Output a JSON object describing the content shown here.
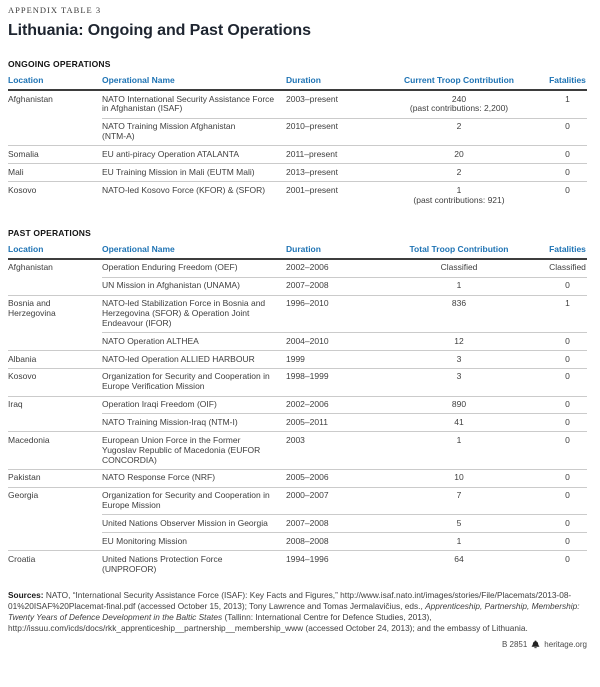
{
  "page": {
    "kicker": "APPENDIX TABLE 3",
    "title": "Lithuania: Ongoing and Past Operations"
  },
  "colors": {
    "header_blue": "#1e73b4",
    "title_dark": "#1e2530",
    "rule_dark": "#3d3d3d",
    "rule_light": "#cbcbcb"
  },
  "ongoing": {
    "section_label": "ONGOING OPERATIONS",
    "columns": [
      "Location",
      "Operational Name",
      "Duration",
      "Current Troop Contribution",
      "Fatalities"
    ],
    "rows": [
      {
        "location": "Afghanistan",
        "name": "NATO International Security Assistance Force\nin Afghanistan (ISAF)",
        "duration": "2003–present",
        "troops": "240",
        "troops_note": "(past contributions: 2,200)",
        "fatalities": "1"
      },
      {
        "location": "",
        "name": "NATO Training Mission Afghanistan\n(NTM-A)",
        "duration": "2010–present",
        "troops": "2",
        "troops_note": "",
        "fatalities": "0"
      },
      {
        "location": "Somalia",
        "name": "EU anti-piracy Operation ATALANTA",
        "duration": "2011–present",
        "troops": "20",
        "troops_note": "",
        "fatalities": "0"
      },
      {
        "location": "Mali",
        "name": "EU Training Mission in Mali (EUTM Mali)",
        "duration": "2013–present",
        "troops": "2",
        "troops_note": "",
        "fatalities": "0"
      },
      {
        "location": "Kosovo",
        "name": "NATO-led Kosovo Force (KFOR) & (SFOR)",
        "duration": "2001–present",
        "troops": "1",
        "troops_note": "(past contributions: 921)",
        "fatalities": "0"
      }
    ]
  },
  "past": {
    "section_label": "PAST OPERATIONS",
    "columns": [
      "Location",
      "Operational Name",
      "Duration",
      "Total Troop Contribution",
      "Fatalities"
    ],
    "rows": [
      {
        "location": "Afghanistan",
        "name": "Operation Enduring Freedom (OEF)",
        "duration": "2002–2006",
        "troops": "Classified",
        "troops_note": "",
        "fatalities": "Classified"
      },
      {
        "location": "",
        "name": "UN Mission in Afghanistan (UNAMA)",
        "duration": "2007–2008",
        "troops": "1",
        "troops_note": "",
        "fatalities": "0"
      },
      {
        "location": "Bosnia and\nHerzegovina",
        "name": "NATO-led Stabilization Force in Bosnia and\nHerzegovina (SFOR) & Operation Joint\nEndeavour (IFOR)",
        "duration": "1996–2010",
        "troops": "836",
        "troops_note": "",
        "fatalities": "1"
      },
      {
        "location": "",
        "name": "NATO Operation ALTHEA",
        "duration": "2004–2010",
        "troops": "12",
        "troops_note": "",
        "fatalities": "0"
      },
      {
        "location": "Albania",
        "name": "NATO-led Operation ALLIED HARBOUR",
        "duration": "1999",
        "troops": "3",
        "troops_note": "",
        "fatalities": "0"
      },
      {
        "location": "Kosovo",
        "name": "Organization for Security and Cooperation in\nEurope Verification Mission",
        "duration": "1998–1999",
        "troops": "3",
        "troops_note": "",
        "fatalities": "0"
      },
      {
        "location": "Iraq",
        "name": "Operation Iraqi Freedom (OIF)",
        "duration": "2002–2006",
        "troops": "890",
        "troops_note": "",
        "fatalities": "0"
      },
      {
        "location": "",
        "name": "NATO Training Mission-Iraq (NTM-I)",
        "duration": "2005–2011",
        "troops": "41",
        "troops_note": "",
        "fatalities": "0"
      },
      {
        "location": "Macedonia",
        "name": "European Union Force in the Former\nYugoslav Republic of Macedonia (EUFOR\nCONCORDIA)",
        "duration": "2003",
        "troops": "1",
        "troops_note": "",
        "fatalities": "0"
      },
      {
        "location": "Pakistan",
        "name": "NATO Response Force (NRF)",
        "duration": "2005–2006",
        "troops": "10",
        "troops_note": "",
        "fatalities": "0"
      },
      {
        "location": "Georgia",
        "name": "Organization for Security and Cooperation in\nEurope Mission",
        "duration": "2000–2007",
        "troops": "7",
        "troops_note": "",
        "fatalities": "0"
      },
      {
        "location": "",
        "name": "United Nations Observer Mission in Georgia",
        "duration": "2007–2008",
        "troops": "5",
        "troops_note": "",
        "fatalities": "0"
      },
      {
        "location": "",
        "name": "EU Monitoring Mission",
        "duration": "2008–2008",
        "troops": "1",
        "troops_note": "",
        "fatalities": "0"
      },
      {
        "location": "Croatia",
        "name": "United Nations Protection Force\n(UNPROFOR)",
        "duration": "1994–1996",
        "troops": "64",
        "troops_note": "",
        "fatalities": "0"
      }
    ]
  },
  "sources": {
    "label": "Sources:",
    "part1": " NATO, “International Security Assistance Force (ISAF): Key Facts and Figures,” http://www.isaf.nato.int/images/stories/File/Placemats/2013-08-01%20ISAF%20Placemat-final.pdf (accessed October 15, 2013); Tony Lawrence and Tomas Jermalavičius, eds., ",
    "italic": "Apprenticeship, Partnership, Membership: Twenty Years of Defence Development in the Baltic States",
    "part2": " (Tallinn: International Centre for Defence Studies, 2013), http://issuu.com/icds/docs/rkk_apprenticeship__partnership__membership_www (accessed October 24, 2013); and the embassy of Lithuania."
  },
  "footer": {
    "report_id": "B 2851",
    "logo_icon": "heritage-bell-icon",
    "site": "heritage.org"
  }
}
